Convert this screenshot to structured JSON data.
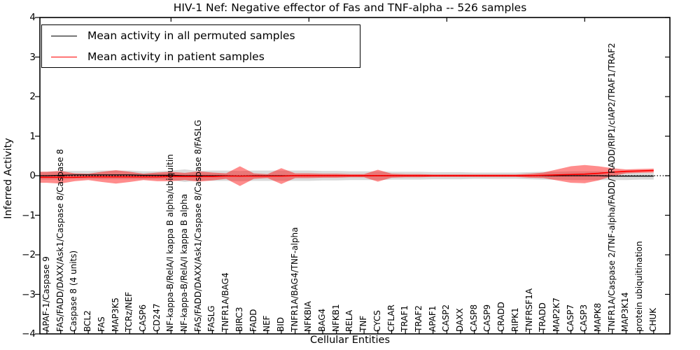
{
  "figure": {
    "title": "HIV-1 Nef: Negative effector of Fas and TNF-alpha -- 526 samples",
    "xlabel": "Cellular Entities",
    "ylabel": "Inferred Activity",
    "yticks": [
      "4",
      "3",
      "2",
      "1",
      "0",
      "−1",
      "−2",
      "−3",
      "−4"
    ],
    "legend": [
      {
        "label": "Mean activity in all permuted samples",
        "color": "#000000"
      },
      {
        "label": "Mean activity in patient samples",
        "color": "#ff0000"
      }
    ]
  },
  "chart_data": {
    "type": "line",
    "title": "HIV-1 Nef: Negative effector of Fas and TNF-alpha -- 526 samples",
    "xlabel": "Cellular Entities",
    "ylabel": "Inferred Activity",
    "ylim": [
      -4,
      4
    ],
    "grid": false,
    "zero_line": "dotted",
    "legend_position": "upper left",
    "sample_count": 526,
    "categories": [
      "APAF-1/Caspase 9",
      "FAS/FADD/DAXX/Ask1/Caspase 8/Caspase 8",
      "Caspase 8 (4 units)",
      "BCL2",
      "FAS",
      "MAP3K5",
      "TCRz/NEF",
      "CASP6",
      "CD247",
      "NF-kappa-B/RelA/I kappa B alpha/ubiquitin",
      "NF-kappa-B/RelA/I kappa B alpha",
      "FAS/FADD/DAXX/Ask1/Caspase 8/Caspase 8/FASLG",
      "FASLG",
      "TNFR1A/BAG4",
      "BIRC3",
      "FADD",
      "NEF",
      "BID",
      "TNFR1A/BAG4/TNF-alpha",
      "NFKBIA",
      "BAG4",
      "NFKB1",
      "RELA",
      "TNF",
      "CYCS",
      "CFLAR",
      "TRAF1",
      "TRAF2",
      "APAF1",
      "CASP2",
      "DAXX",
      "CASP8",
      "CASP9",
      "CRADD",
      "RIPK1",
      "TNFRSF1A",
      "TRADD",
      "MAP2K7",
      "CASP7",
      "CASP3",
      "MAPK8",
      "TNFR1A/Caspase 2/TNF-alpha/FADD/TRADD/RIP1/cIAP2/TRAF1/TRAF2",
      "MAP3K14",
      "protein ubiquitination",
      "CHUK"
    ],
    "series": [
      {
        "name": "Mean activity in all permuted samples",
        "type": "line",
        "color": "#000000",
        "values": [
          0,
          0.01,
          0.02,
          0.02,
          0.02,
          0.02,
          0.02,
          0.01,
          0.01,
          0.01,
          0,
          0,
          0,
          0,
          -0.01,
          0,
          0,
          0,
          0,
          0,
          0,
          0,
          0,
          0,
          0,
          0,
          0,
          0,
          0,
          0,
          0,
          0,
          0,
          0,
          0,
          0,
          0,
          0,
          0,
          0,
          0,
          -0.01,
          -0.01,
          -0.01,
          -0.01
        ]
      },
      {
        "name": "Permuted samples ±1 std band",
        "type": "band",
        "color": "rgba(0,0,0,0.15)",
        "half_widths": [
          0.1,
          0.11,
          0.1,
          0.1,
          0.11,
          0.11,
          0.11,
          0.1,
          0.1,
          0.12,
          0.16,
          0.12,
          0.13,
          0.13,
          0.13,
          0.13,
          0.13,
          0.13,
          0.13,
          0.13,
          0.12,
          0.12,
          0.11,
          0.11,
          0.11,
          0.1,
          0.1,
          0.1,
          0.09,
          0.09,
          0.09,
          0.08,
          0.08,
          0.08,
          0.08,
          0.09,
          0.1,
          0.1,
          0.11,
          0.11,
          0.11,
          0.1,
          0.1,
          0.09,
          0.09
        ]
      },
      {
        "name": "Mean activity in patient samples",
        "type": "line",
        "color": "#ff0000",
        "values": [
          -0.04,
          -0.04,
          -0.04,
          -0.03,
          -0.03,
          -0.03,
          -0.03,
          -0.03,
          -0.03,
          -0.02,
          -0.02,
          -0.02,
          -0.02,
          -0.01,
          -0.01,
          -0.01,
          -0.01,
          -0.01,
          0,
          0,
          0,
          0,
          0,
          0,
          0,
          0,
          0,
          0,
          0,
          0,
          0,
          0,
          0,
          0,
          0,
          0,
          0.01,
          0.02,
          0.03,
          0.04,
          0.06,
          0.09,
          0.11,
          0.12,
          0.13
        ]
      },
      {
        "name": "Patient samples ±1 std band",
        "type": "band",
        "color": "rgba(255,0,0,0.45)",
        "half_widths": [
          0.14,
          0.16,
          0.1,
          0.08,
          0.13,
          0.17,
          0.13,
          0.08,
          0.11,
          0.12,
          0.09,
          0.13,
          0.1,
          0.07,
          0.25,
          0.07,
          0.05,
          0.2,
          0.06,
          0.06,
          0.05,
          0.05,
          0.04,
          0.04,
          0.15,
          0.05,
          0.04,
          0.04,
          0.03,
          0.03,
          0.03,
          0.03,
          0.03,
          0.03,
          0.03,
          0.05,
          0.07,
          0.14,
          0.21,
          0.23,
          0.18,
          0.1,
          0.05,
          0.05,
          0.05
        ]
      }
    ]
  }
}
